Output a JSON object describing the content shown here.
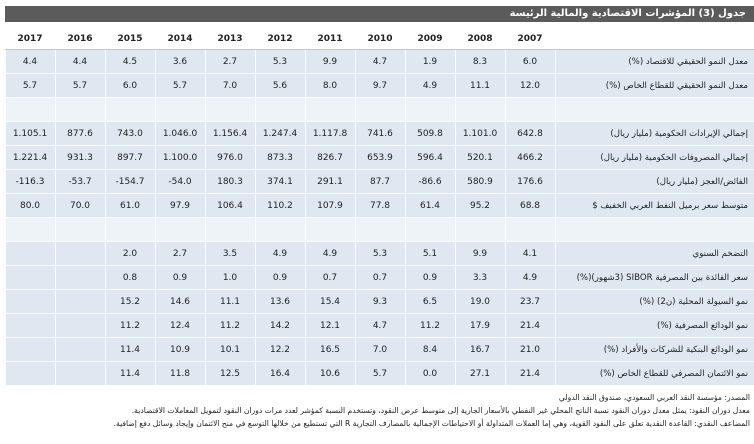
{
  "title": "جدول (3) المؤشرات الاقتصادية والمالية الرئيسة",
  "table": {
    "years": [
      "2007",
      "2008",
      "2009",
      "2010",
      "2011",
      "2012",
      "2013",
      "2014",
      "2015",
      "2016",
      "2017"
    ],
    "groups": [
      [
        {
          "label": "معدل النمو الحقيقي للاقتصاد (%)",
          "values": [
            "6.0",
            "8.3",
            "1.9",
            "4.7",
            "9.9",
            "5.3",
            "2.7",
            "3.6",
            "4.5",
            "4.4",
            "4.4"
          ]
        },
        {
          "label": "معدل النمو الحقيقي للقطاع الخاص (%)",
          "values": [
            "12.0",
            "11.1",
            "4.9",
            "9.7",
            "8.0",
            "5.6",
            "7.0",
            "5.7",
            "6.0",
            "5.7",
            "5.7"
          ]
        }
      ],
      [
        {
          "label": "إجمالي الإيرادات الحكومية (مليار ريال)",
          "values": [
            "642.8",
            "1.101.0",
            "509.8",
            "741.6",
            "1.117.8",
            "1.247.4",
            "1.156.4",
            "1.046.0",
            "743.0",
            "877.6",
            "1.105.1"
          ]
        },
        {
          "label": "إجمالي المصروفات الحكومية (مليار ريال)",
          "values": [
            "466.2",
            "520.1",
            "596.4",
            "653.9",
            "826.7",
            "873.3",
            "976.0",
            "1.100.0",
            "897.7",
            "931.3",
            "1.221.4"
          ]
        },
        {
          "label": "الفائض/العجز (مليار ريال)",
          "values": [
            "176.6",
            "580.9",
            "86.6-",
            "87.7",
            "291.1",
            "374.1",
            "180.3",
            "54.0-",
            "154.7-",
            "53.7-",
            "116.3-"
          ]
        },
        {
          "label": "متوسط سعر برميل النفط العربي الخفيف $",
          "values": [
            "68.8",
            "95.2",
            "61.4",
            "77.8",
            "107.9",
            "110.2",
            "106.4",
            "97.9",
            "61.0",
            "70.0",
            "80.0"
          ]
        }
      ],
      [
        {
          "label": "التضخم السنوي",
          "values": [
            "4.1",
            "9.9",
            "5.1",
            "5.3",
            "4.9",
            "4.9",
            "3.5",
            "2.7",
            "2.0"
          ]
        },
        {
          "label": "سعر الفائدة بين المصرفية SIBOR (3شهور)(%)",
          "values": [
            "4.9",
            "3.3",
            "0.9",
            "0.7",
            "0.7",
            "0.9",
            "1.0",
            "0.9",
            "0.8"
          ]
        },
        {
          "label": "نمو السيولة المحلية (ن2) (%)",
          "values": [
            "23.7",
            "19.0",
            "6.5",
            "9.3",
            "15.4",
            "13.6",
            "11.1",
            "14.6",
            "15.2"
          ]
        },
        {
          "label": "نمو الودائع المصرفية (%)",
          "values": [
            "21.4",
            "17.9",
            "11.2",
            "4.7",
            "12.1",
            "14.2",
            "11.2",
            "12.4",
            "11.2"
          ]
        },
        {
          "label": "نمو الودائع البنكية للشركات والأفراد (%)",
          "values": [
            "21.0",
            "16.7",
            "8.4",
            "7.0",
            "16.5",
            "12.2",
            "10.1",
            "10.9",
            "11.4"
          ]
        },
        {
          "label": "نمو الائتمان المصرفي للقطاع الخاص (%)",
          "values": [
            "21.4",
            "27.1",
            "0.0",
            "5.7",
            "10.6",
            "16.4",
            "12.5",
            "11.8",
            "11.4"
          ]
        }
      ]
    ]
  },
  "notes": [
    "المصدر: مؤسسة النقد العربي السعودي، صندوق النقد الدولي",
    "معدل دوران النقود: يمثل معدل دوران النقود نسبة الناتج المحلي غير النفطي بالأسعار الجارية إلى متوسط عرض النقود، وتستخدم النسبة كمؤشر لعدد مرات دوران النقود لتمويل المعاملات الاقتصادية.",
    "المضاعف النقدي: القاعدة النقدية تعلق على النقود القوية، وهي إما العملات المتداولة أو الاحتياطات الإجمالية بالمصارف التجارية R التي تستطيع من خلالها التوسع في منح الائتمان وإيجاد وسائل دفع إضافية."
  ]
}
